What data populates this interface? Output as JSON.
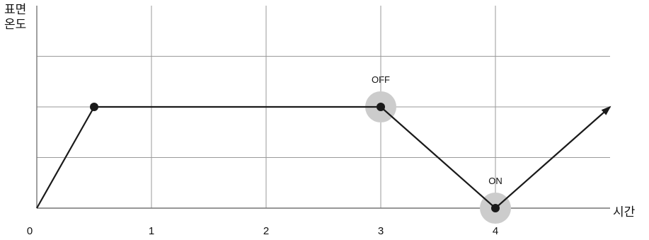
{
  "chart_data": {
    "type": "line",
    "ylabel_lines": [
      "표면",
      "온도"
    ],
    "xlabel": "시간",
    "x_ticks": [
      "0",
      "1",
      "2",
      "3",
      "4"
    ],
    "xlim": [
      0,
      5
    ],
    "ylim": [
      0,
      2
    ],
    "grid": true,
    "series": [
      {
        "x": [
          0,
          0.5,
          3,
          4,
          5
        ],
        "y": [
          0,
          1,
          1,
          0,
          1
        ],
        "color": "#1a1a1a",
        "end_arrow": true
      }
    ],
    "annotations": [
      {
        "text": "OFF",
        "x": 3,
        "y": 1
      },
      {
        "text": "ON",
        "x": 4,
        "y": 0
      }
    ],
    "colors": {
      "line": "#1a1a1a",
      "grid": "#9a9a9a",
      "highlight": "#cccccc"
    }
  }
}
